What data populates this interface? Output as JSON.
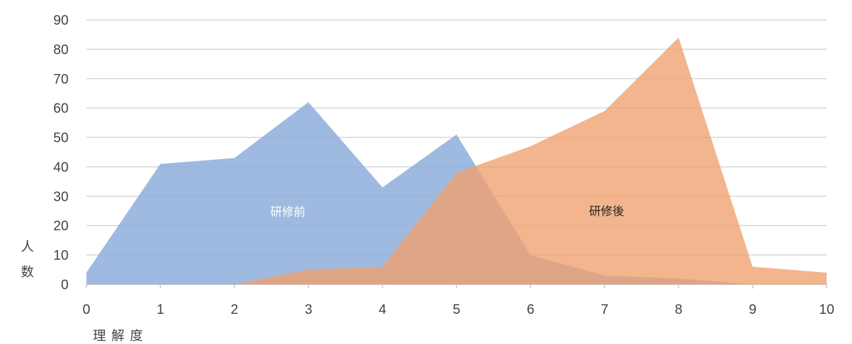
{
  "chart_data": {
    "type": "area",
    "title": "",
    "xlabel": "理解度",
    "ylabel": "人数",
    "x": [
      0,
      1,
      2,
      3,
      4,
      5,
      6,
      7,
      8,
      9,
      10
    ],
    "xlim": [
      0,
      10
    ],
    "ylim": [
      0,
      90
    ],
    "xticks": [
      "0",
      "1",
      "2",
      "3",
      "4",
      "5",
      "6",
      "7",
      "8",
      "9",
      "10"
    ],
    "yticks": [
      "0",
      "10",
      "20",
      "30",
      "40",
      "50",
      "60",
      "70",
      "80",
      "90"
    ],
    "grid": true,
    "legend": "none",
    "series": [
      {
        "name": "研修前",
        "values": [
          4,
          41,
          43,
          62,
          33,
          51,
          10,
          3,
          2,
          0,
          0
        ],
        "color": "#8eaedb",
        "label_color": "#ffffff"
      },
      {
        "name": "研修後",
        "values": [
          0,
          0,
          0,
          5,
          6,
          38,
          47,
          59,
          84,
          6,
          4
        ],
        "color": "#f0a06e",
        "label_color": "#222222"
      }
    ]
  }
}
